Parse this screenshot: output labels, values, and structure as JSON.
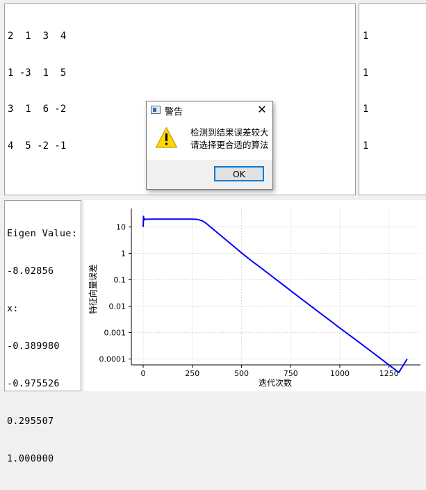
{
  "matrix_a": {
    "rows": [
      "2  1  3  4",
      "1 -3  1  5",
      "3  1  6 -2",
      "4  5 -2 -1"
    ]
  },
  "vector_b": {
    "rows": [
      "1",
      "1",
      "1",
      "1"
    ]
  },
  "output": {
    "lines": [
      "Eigen Value:",
      "-8.02856",
      "x:",
      "-0.389980",
      "-0.975526",
      "0.295507",
      "1.000000"
    ]
  },
  "dialog": {
    "title": "警告",
    "message_line1": "检测到结果误差较大",
    "message_line2": "请选择更合适的算法",
    "ok_label": "OK",
    "icon": "warning-icon",
    "close_icon": "close-icon"
  },
  "chart_data": {
    "type": "line",
    "title": "",
    "xlabel": "迭代次数",
    "ylabel": "特征向量误差",
    "x_ticks": [
      0,
      250,
      500,
      750,
      1000,
      1250
    ],
    "y_ticks": [
      10,
      1,
      0.1,
      0.01,
      0.001,
      0.0001
    ],
    "y_tick_labels": [
      "10",
      "1",
      "0.1",
      "0.01",
      "0.001",
      "0.0001"
    ],
    "y_scale": "log",
    "xlim": [
      -60,
      1410
    ],
    "ylim": [
      6e-05,
      50
    ],
    "grid": true,
    "line_color": "#0000ff",
    "series": [
      {
        "x": [
          0,
          2,
          4,
          6,
          10,
          20,
          50,
          100,
          150,
          200,
          250,
          270,
          280,
          290,
          300,
          310,
          320,
          330,
          350,
          400,
          450,
          500,
          550,
          600,
          700,
          800,
          900,
          1000,
          1100,
          1200,
          1300,
          1342
        ],
        "y": [
          10,
          25,
          18,
          20,
          19.5,
          19.7,
          19.8,
          19.8,
          19.8,
          19.8,
          19.8,
          19.5,
          19.0,
          18.2,
          17.0,
          15.5,
          13.8,
          12.0,
          9.0,
          4.4,
          2.15,
          1.05,
          0.53,
          0.28,
          0.075,
          0.02,
          0.0055,
          0.0015,
          0.00042,
          0.000115,
          3.1e-05,
          0.0001
        ]
      }
    ]
  }
}
